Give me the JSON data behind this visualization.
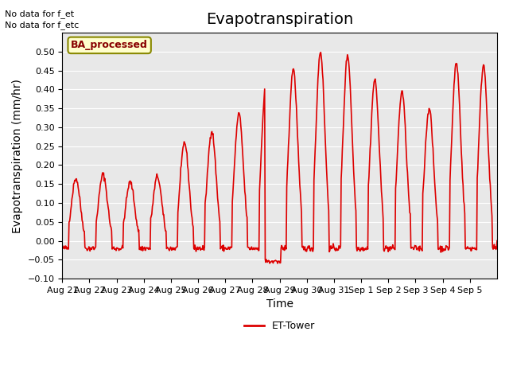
{
  "title": "Evapotranspiration",
  "xlabel": "Time",
  "ylabel": "Evapotranspiration (mm/hr)",
  "ylim": [
    -0.1,
    0.55
  ],
  "yticks": [
    -0.1,
    -0.05,
    0.0,
    0.05,
    0.1,
    0.15,
    0.2,
    0.25,
    0.3,
    0.35,
    0.4,
    0.45,
    0.5
  ],
  "line_color": "#dd0000",
  "line_width": 1.2,
  "bg_color": "#e8e8e8",
  "fig_color": "#ffffff",
  "legend_label": "ET-Tower",
  "legend_line_color": "#dd0000",
  "ba_label": "BA_processed",
  "ba_bg": "#ffffcc",
  "ba_border": "#888800",
  "no_data_text1": "No data for f_et",
  "no_data_text2": "No data for f_etc",
  "xtick_labels": [
    "Aug 21",
    "Aug 22",
    "Aug 23",
    "Aug 24",
    "Aug 25",
    "Aug 26",
    "Aug 27",
    "Aug 28",
    "Aug 29",
    "Aug 30",
    "Aug 31",
    "Sep 1",
    "Sep 2",
    "Sep 3",
    "Sep 4",
    "Sep 5"
  ],
  "n_days": 16,
  "day_peaks": [
    0.165,
    0.175,
    0.155,
    0.17,
    0.26,
    0.29,
    0.335,
    0.425,
    0.455,
    0.5,
    0.49,
    0.425,
    0.395,
    0.35,
    0.47,
    0.465
  ],
  "title_fontsize": 14,
  "axis_fontsize": 10,
  "tick_fontsize": 8
}
